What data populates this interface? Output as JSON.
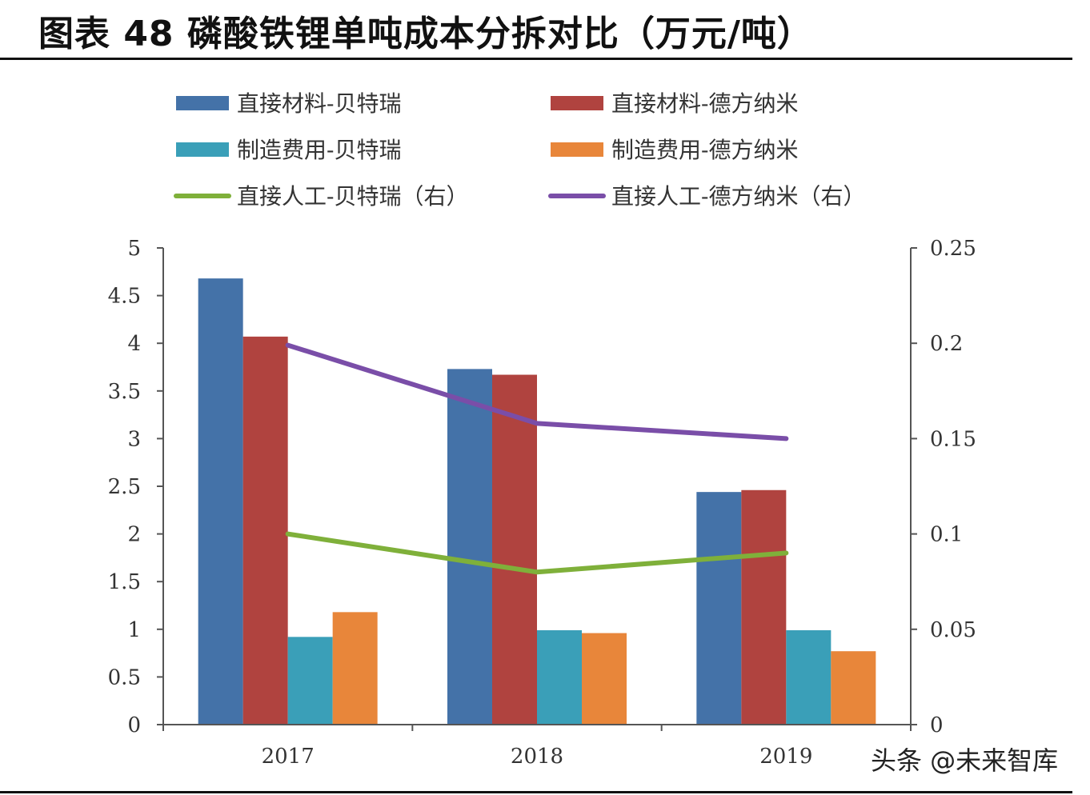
{
  "title": "图表 48 磷酸铁锂单吨成本分拆对比（万元/吨）",
  "watermark": "头条 @未来智库",
  "chart_data": {
    "type": "bar",
    "categories": [
      "2017",
      "2018",
      "2019"
    ],
    "series": [
      {
        "name": "直接材料-贝特瑞",
        "type": "bar",
        "axis": "left",
        "color": "#4472a8",
        "values": [
          4.68,
          3.73,
          2.44
        ]
      },
      {
        "name": "直接材料-德方纳米",
        "type": "bar",
        "axis": "left",
        "color": "#b0433f",
        "values": [
          4.07,
          3.67,
          2.46
        ]
      },
      {
        "name": "制造费用-贝特瑞",
        "type": "bar",
        "axis": "left",
        "color": "#3a9fb8",
        "values": [
          0.92,
          0.99,
          0.99
        ]
      },
      {
        "name": "制造费用-德方纳米",
        "type": "bar",
        "axis": "left",
        "color": "#e8863a",
        "values": [
          1.18,
          0.96,
          0.77
        ]
      },
      {
        "name": "直接人工-贝特瑞（右）",
        "type": "line",
        "axis": "right",
        "color": "#7fb03a",
        "values": [
          0.1,
          0.08,
          0.09
        ]
      },
      {
        "name": "直接人工-德方纳米（右）",
        "type": "line",
        "axis": "right",
        "color": "#7a4ea8",
        "values": [
          0.199,
          0.158,
          0.15
        ]
      }
    ],
    "ylim": [
      0,
      5
    ],
    "yticks": [
      "0",
      "0.5",
      "1",
      "1.5",
      "2",
      "2.5",
      "3",
      "3.5",
      "4",
      "4.5",
      "5"
    ],
    "y2lim": [
      0,
      0.25
    ],
    "y2ticks": [
      "0",
      "0.05",
      "0.1",
      "0.15",
      "0.2",
      "0.25"
    ],
    "grid": false,
    "legend_position": "top"
  }
}
